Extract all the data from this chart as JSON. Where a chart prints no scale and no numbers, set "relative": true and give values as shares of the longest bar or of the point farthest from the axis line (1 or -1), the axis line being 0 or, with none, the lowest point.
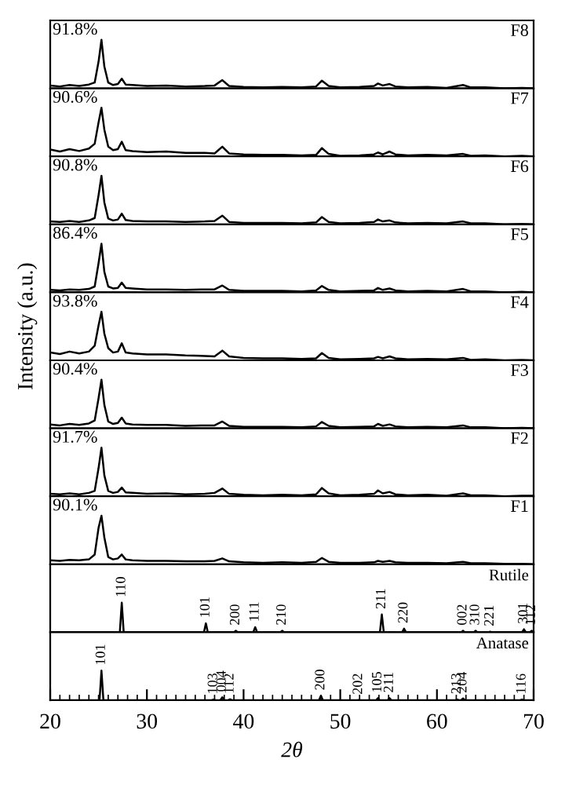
{
  "chart_data": [
    {
      "type": "line",
      "relative": true,
      "tick_labels": false,
      "xlim": [
        20,
        70
      ],
      "annotations": [
        "91.8%",
        "F8"
      ],
      "x": [
        20,
        21,
        22,
        23,
        24,
        24.6,
        25.0,
        25.3,
        25.6,
        26,
        26.5,
        27,
        27.4,
        27.8,
        28.5,
        30,
        32,
        34,
        36,
        37,
        37.8,
        38.5,
        40,
        42,
        44,
        46,
        47.5,
        48.1,
        48.8,
        50,
        52,
        53.5,
        53.9,
        54.4,
        55.1,
        55.7,
        57,
        59,
        61,
        62.7,
        63.5,
        65,
        67,
        68.8,
        70
      ],
      "series": [
        {
          "color": "#000000",
          "values": [
            0.06,
            0.04,
            0.07,
            0.05,
            0.08,
            0.12,
            0.55,
            1.0,
            0.45,
            0.12,
            0.07,
            0.09,
            0.2,
            0.08,
            0.07,
            0.05,
            0.06,
            0.04,
            0.05,
            0.06,
            0.17,
            0.05,
            0.03,
            0.02,
            0.03,
            0.02,
            0.04,
            0.16,
            0.05,
            0.02,
            0.03,
            0.05,
            0.1,
            0.06,
            0.09,
            0.04,
            0.02,
            0.03,
            0.01,
            0.07,
            0.02,
            0.02,
            0.0,
            0.01,
            0.0
          ]
        }
      ]
    },
    {
      "type": "line",
      "relative": true,
      "tick_labels": false,
      "xlim": [
        20,
        70
      ],
      "annotations": [
        "90.6%",
        "F7"
      ],
      "x": [
        20,
        21,
        22,
        23,
        24,
        24.6,
        25.0,
        25.3,
        25.6,
        26,
        26.5,
        27,
        27.4,
        27.8,
        28.5,
        30,
        32,
        34,
        36,
        37,
        37.8,
        38.5,
        40,
        42,
        44,
        46,
        47.5,
        48.1,
        48.8,
        50,
        52,
        53.5,
        53.9,
        54.4,
        55.1,
        55.7,
        57,
        59,
        61,
        62.7,
        63.5,
        65,
        67,
        68.8,
        70
      ],
      "series": [
        {
          "color": "#000000",
          "values": [
            0.14,
            0.1,
            0.15,
            0.11,
            0.16,
            0.26,
            0.7,
            1.0,
            0.55,
            0.2,
            0.13,
            0.15,
            0.3,
            0.13,
            0.11,
            0.09,
            0.1,
            0.07,
            0.07,
            0.06,
            0.2,
            0.06,
            0.04,
            0.03,
            0.03,
            0.02,
            0.03,
            0.17,
            0.05,
            0.01,
            0.02,
            0.04,
            0.08,
            0.04,
            0.1,
            0.04,
            0.02,
            0.03,
            0.02,
            0.05,
            0.01,
            0.02,
            0.0,
            0.01,
            0.0
          ]
        }
      ]
    },
    {
      "type": "line",
      "relative": true,
      "tick_labels": false,
      "xlim": [
        20,
        70
      ],
      "annotations": [
        "90.8%",
        "F6"
      ],
      "x": [
        20,
        21,
        22,
        23,
        24,
        24.6,
        25.0,
        25.3,
        25.6,
        26,
        26.5,
        27,
        27.4,
        27.8,
        28.5,
        30,
        32,
        34,
        36,
        37,
        37.8,
        38.5,
        40,
        42,
        44,
        46,
        47.5,
        48.1,
        48.8,
        50,
        52,
        53.5,
        53.9,
        54.4,
        55.1,
        55.7,
        57,
        59,
        61,
        62.7,
        63.5,
        65,
        67,
        68.8,
        70
      ],
      "series": [
        {
          "color": "#000000",
          "values": [
            0.06,
            0.05,
            0.07,
            0.05,
            0.08,
            0.13,
            0.6,
            1.0,
            0.45,
            0.12,
            0.08,
            0.1,
            0.22,
            0.09,
            0.07,
            0.06,
            0.06,
            0.05,
            0.06,
            0.07,
            0.18,
            0.05,
            0.03,
            0.03,
            0.03,
            0.02,
            0.04,
            0.15,
            0.05,
            0.02,
            0.03,
            0.05,
            0.1,
            0.06,
            0.08,
            0.04,
            0.02,
            0.03,
            0.02,
            0.06,
            0.02,
            0.02,
            0.0,
            0.01,
            0.0
          ]
        }
      ]
    },
    {
      "type": "line",
      "relative": true,
      "tick_labels": false,
      "xlim": [
        20,
        70
      ],
      "annotations": [
        "86.4%",
        "F5"
      ],
      "x": [
        20,
        21,
        22,
        23,
        24,
        24.6,
        25.0,
        25.3,
        25.6,
        26,
        26.5,
        27,
        27.4,
        27.8,
        28.5,
        30,
        32,
        34,
        36,
        37,
        37.8,
        38.5,
        40,
        42,
        44,
        46,
        47.5,
        48.1,
        48.8,
        50,
        52,
        53.5,
        53.9,
        54.4,
        55.1,
        55.7,
        57,
        59,
        61,
        62.7,
        63.5,
        65,
        67,
        68.8,
        70
      ],
      "series": [
        {
          "color": "#000000",
          "values": [
            0.05,
            0.04,
            0.06,
            0.05,
            0.07,
            0.12,
            0.6,
            1.0,
            0.42,
            0.12,
            0.08,
            0.09,
            0.2,
            0.09,
            0.08,
            0.06,
            0.06,
            0.05,
            0.06,
            0.06,
            0.14,
            0.05,
            0.03,
            0.03,
            0.03,
            0.02,
            0.04,
            0.13,
            0.05,
            0.02,
            0.03,
            0.04,
            0.09,
            0.05,
            0.08,
            0.04,
            0.02,
            0.03,
            0.02,
            0.07,
            0.02,
            0.02,
            0.0,
            0.01,
            0.0
          ]
        }
      ]
    },
    {
      "type": "line",
      "relative": true,
      "tick_labels": false,
      "xlim": [
        20,
        70
      ],
      "annotations": [
        "93.8%",
        "F4"
      ],
      "ylabel": "Intensity (a.u.)",
      "x": [
        20,
        21,
        22,
        23,
        24,
        24.6,
        25.0,
        25.3,
        25.6,
        26,
        26.5,
        27,
        27.4,
        27.8,
        28.5,
        30,
        32,
        34,
        36,
        37,
        37.8,
        38.5,
        40,
        42,
        44,
        46,
        47.5,
        48.1,
        48.8,
        50,
        52,
        53.5,
        53.9,
        54.4,
        55.1,
        55.7,
        57,
        59,
        61,
        62.7,
        63.5,
        65,
        67,
        68.8,
        70
      ],
      "series": [
        {
          "color": "#000000",
          "values": [
            0.16,
            0.13,
            0.18,
            0.14,
            0.18,
            0.3,
            0.72,
            1.0,
            0.55,
            0.25,
            0.16,
            0.18,
            0.35,
            0.16,
            0.14,
            0.12,
            0.12,
            0.1,
            0.09,
            0.08,
            0.2,
            0.08,
            0.05,
            0.04,
            0.04,
            0.03,
            0.04,
            0.15,
            0.05,
            0.02,
            0.03,
            0.04,
            0.07,
            0.04,
            0.08,
            0.04,
            0.02,
            0.03,
            0.02,
            0.05,
            0.01,
            0.02,
            0.0,
            0.01,
            0.0
          ]
        }
      ]
    },
    {
      "type": "line",
      "relative": true,
      "tick_labels": false,
      "xlim": [
        20,
        70
      ],
      "annotations": [
        "90.4%",
        "F3"
      ],
      "x": [
        20,
        21,
        22,
        23,
        24,
        24.6,
        25.0,
        25.3,
        25.6,
        26,
        26.5,
        27,
        27.4,
        27.8,
        28.5,
        30,
        32,
        34,
        36,
        37,
        37.8,
        38.5,
        40,
        42,
        44,
        46,
        47.5,
        48.1,
        48.8,
        50,
        52,
        53.5,
        53.9,
        54.4,
        55.1,
        55.7,
        57,
        59,
        61,
        62.7,
        63.5,
        65,
        67,
        68.8,
        70
      ],
      "series": [
        {
          "color": "#000000",
          "values": [
            0.08,
            0.06,
            0.09,
            0.07,
            0.1,
            0.16,
            0.62,
            1.0,
            0.48,
            0.14,
            0.09,
            0.11,
            0.22,
            0.1,
            0.08,
            0.07,
            0.07,
            0.05,
            0.06,
            0.06,
            0.14,
            0.05,
            0.03,
            0.03,
            0.03,
            0.02,
            0.04,
            0.13,
            0.05,
            0.02,
            0.03,
            0.04,
            0.09,
            0.05,
            0.08,
            0.04,
            0.02,
            0.03,
            0.02,
            0.06,
            0.02,
            0.02,
            0.0,
            0.01,
            0.0
          ]
        }
      ]
    },
    {
      "type": "line",
      "relative": true,
      "tick_labels": false,
      "xlim": [
        20,
        70
      ],
      "annotations": [
        "91.7%",
        "F2"
      ],
      "x": [
        20,
        21,
        22,
        23,
        24,
        24.6,
        25.0,
        25.3,
        25.6,
        26,
        26.5,
        27,
        27.4,
        27.8,
        28.5,
        30,
        32,
        34,
        36,
        37,
        37.8,
        38.5,
        40,
        42,
        44,
        46,
        47.5,
        48.1,
        48.8,
        50,
        52,
        53.5,
        53.9,
        54.4,
        55.1,
        55.7,
        57,
        59,
        61,
        62.7,
        63.5,
        65,
        67,
        68.8,
        70
      ],
      "series": [
        {
          "color": "#000000",
          "values": [
            0.05,
            0.04,
            0.06,
            0.04,
            0.07,
            0.11,
            0.58,
            1.0,
            0.43,
            0.11,
            0.07,
            0.09,
            0.18,
            0.08,
            0.07,
            0.05,
            0.06,
            0.04,
            0.05,
            0.07,
            0.16,
            0.05,
            0.03,
            0.02,
            0.03,
            0.02,
            0.04,
            0.17,
            0.06,
            0.02,
            0.03,
            0.05,
            0.12,
            0.06,
            0.09,
            0.04,
            0.02,
            0.03,
            0.01,
            0.06,
            0.02,
            0.02,
            0.0,
            0.01,
            0.01
          ]
        }
      ]
    },
    {
      "type": "line",
      "relative": true,
      "tick_labels": false,
      "xlim": [
        20,
        70
      ],
      "annotations": [
        "90.1%",
        "F1"
      ],
      "x": [
        20,
        21,
        22,
        23,
        24,
        24.6,
        25.0,
        25.3,
        25.6,
        26,
        26.5,
        27,
        27.4,
        27.8,
        28.5,
        30,
        32,
        34,
        36,
        37,
        37.8,
        38.5,
        40,
        42,
        44,
        46,
        47.5,
        48.1,
        48.8,
        50,
        52,
        53.5,
        53.9,
        54.4,
        55.1,
        55.7,
        57,
        59,
        61,
        62.7,
        63.5,
        65,
        67,
        68.8,
        70
      ],
      "series": [
        {
          "color": "#000000",
          "values": [
            0.08,
            0.07,
            0.09,
            0.08,
            0.1,
            0.2,
            0.75,
            1.0,
            0.55,
            0.15,
            0.1,
            0.12,
            0.2,
            0.1,
            0.08,
            0.07,
            0.07,
            0.06,
            0.06,
            0.07,
            0.12,
            0.06,
            0.04,
            0.03,
            0.04,
            0.03,
            0.05,
            0.13,
            0.05,
            0.03,
            0.03,
            0.04,
            0.07,
            0.05,
            0.07,
            0.04,
            0.03,
            0.03,
            0.02,
            0.05,
            0.02,
            0.02,
            0.01,
            0.01,
            0.0
          ]
        }
      ]
    },
    {
      "type": "line",
      "relative": true,
      "tick_labels": false,
      "xlim": [
        20,
        70
      ],
      "x": [
        20,
        27.2,
        27.4,
        27.6,
        35.9,
        36.1,
        36.3,
        39.0,
        39.2,
        39.4,
        41.0,
        41.2,
        41.4,
        43.8,
        44.0,
        44.2,
        54.1,
        54.3,
        54.5,
        56.4,
        56.6,
        56.8,
        62.5,
        62.7,
        62.9,
        63.8,
        64.0,
        64.2,
        65.3,
        65.5,
        65.7,
        68.8,
        69.0,
        69.2,
        69.6,
        69.8,
        70
      ],
      "series": [
        {
          "color": "#000000",
          "values": [
            0,
            0,
            1.0,
            0,
            0,
            0.3,
            0,
            0,
            0.05,
            0,
            0,
            0.17,
            0,
            0,
            0.05,
            0,
            0,
            0.6,
            0,
            0,
            0.12,
            0,
            0,
            0.05,
            0,
            0,
            0.05,
            0,
            0,
            0.02,
            0,
            0,
            0.1,
            0,
            0,
            0.05,
            0
          ]
        }
      ],
      "annotations": [
        "Rutile",
        {
          "text": "110",
          "x": 27.4,
          "y": 1.0
        },
        {
          "text": "101",
          "x": 36.1,
          "y": 0.3
        },
        {
          "text": "200",
          "x": 39.2,
          "y": 0.05
        },
        {
          "text": "111",
          "x": 41.2,
          "y": 0.17
        },
        {
          "text": "210",
          "x": 44.0,
          "y": 0.05
        },
        {
          "text": "211",
          "x": 54.3,
          "y": 0.6
        },
        {
          "text": "220",
          "x": 56.6,
          "y": 0.12
        },
        {
          "text": "002",
          "x": 62.7,
          "y": 0.05
        },
        {
          "text": "310",
          "x": 64.0,
          "y": 0.05
        },
        {
          "text": "221",
          "x": 65.5,
          "y": 0.02
        },
        {
          "text": "301",
          "x": 69.0,
          "y": 0.1
        },
        {
          "text": "112",
          "x": 69.8,
          "y": 0.05
        }
      ]
    },
    {
      "type": "line",
      "relative": true,
      "xlim": [
        20,
        70
      ],
      "xticks": [
        20,
        30,
        40,
        50,
        60,
        70
      ],
      "xlabel": "2θ",
      "x": [
        20,
        25.1,
        25.3,
        25.5,
        36.7,
        36.9,
        37.1,
        37.6,
        37.8,
        38.0,
        38.4,
        38.6,
        38.8,
        47.8,
        48.0,
        48.2,
        51.7,
        51.9,
        52.1,
        53.7,
        53.9,
        54.1,
        54.9,
        55.1,
        55.3,
        61.9,
        62.1,
        62.3,
        62.5,
        62.7,
        62.9,
        68.6,
        68.8,
        69.0,
        70
      ],
      "series": [
        {
          "color": "#000000",
          "values": [
            0,
            0,
            1.0,
            0,
            0,
            0.02,
            0,
            0,
            0.1,
            0,
            0,
            0.03,
            0,
            0,
            0.15,
            0,
            0,
            0.01,
            0,
            0,
            0.07,
            0,
            0,
            0.07,
            0,
            0,
            0.02,
            0,
            0,
            0.06,
            0,
            0,
            0.02,
            0,
            0
          ]
        }
      ],
      "annotations": [
        "Anatase",
        {
          "text": "101",
          "x": 25.3,
          "y": 1.0
        },
        {
          "text": "103",
          "x": 36.9,
          "y": 0.02
        },
        {
          "text": "004",
          "x": 37.8,
          "y": 0.1
        },
        {
          "text": "112",
          "x": 38.6,
          "y": 0.03
        },
        {
          "text": "200",
          "x": 48.0,
          "y": 0.15
        },
        {
          "text": "202",
          "x": 51.9,
          "y": 0.01
        },
        {
          "text": "105",
          "x": 53.9,
          "y": 0.07
        },
        {
          "text": "211",
          "x": 55.1,
          "y": 0.07
        },
        {
          "text": "213",
          "x": 62.1,
          "y": 0.02
        },
        {
          "text": "204",
          "x": 62.7,
          "y": 0.06
        },
        {
          "text": "116",
          "x": 68.8,
          "y": 0.02
        }
      ]
    }
  ]
}
